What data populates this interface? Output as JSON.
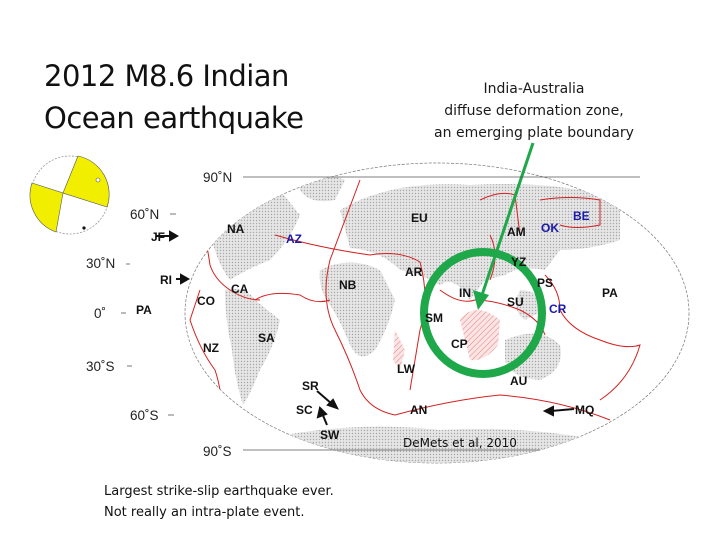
{
  "slide": {
    "title_lines": [
      "2012 M8.6 Indian",
      "Ocean earthquake"
    ],
    "note_lines": [
      "India-Australia",
      "diffuse deformation zone,",
      "an emerging plate boundary"
    ],
    "caption_lines": [
      "Largest strike-slip earthquake ever.",
      "Not really an intra-plate event."
    ]
  },
  "map": {
    "credit": "DeMets et al, 2010",
    "latitude_labels": [
      "90˚N",
      "60˚N",
      "30˚N",
      "0˚",
      "30˚S",
      "60˚S",
      "90˚S"
    ],
    "plates": [
      "NA",
      "AZ",
      "JF",
      "RI",
      "CA",
      "CO",
      "PA",
      "NZ",
      "SA",
      "NB",
      "SR",
      "SC",
      "SW",
      "EU",
      "AR",
      "AM",
      "OK",
      "BE",
      "YZ",
      "IN",
      "SU",
      "PS",
      "CR",
      "PA",
      "SM",
      "CP",
      "LW",
      "AU",
      "AN",
      "MQ"
    ],
    "colors": {
      "boundary": "#d42020",
      "highlight": "#1fa84a",
      "beachball": "#f2ee00",
      "land": "#d8d8d8",
      "blue_label": "#1a1aa8"
    }
  }
}
